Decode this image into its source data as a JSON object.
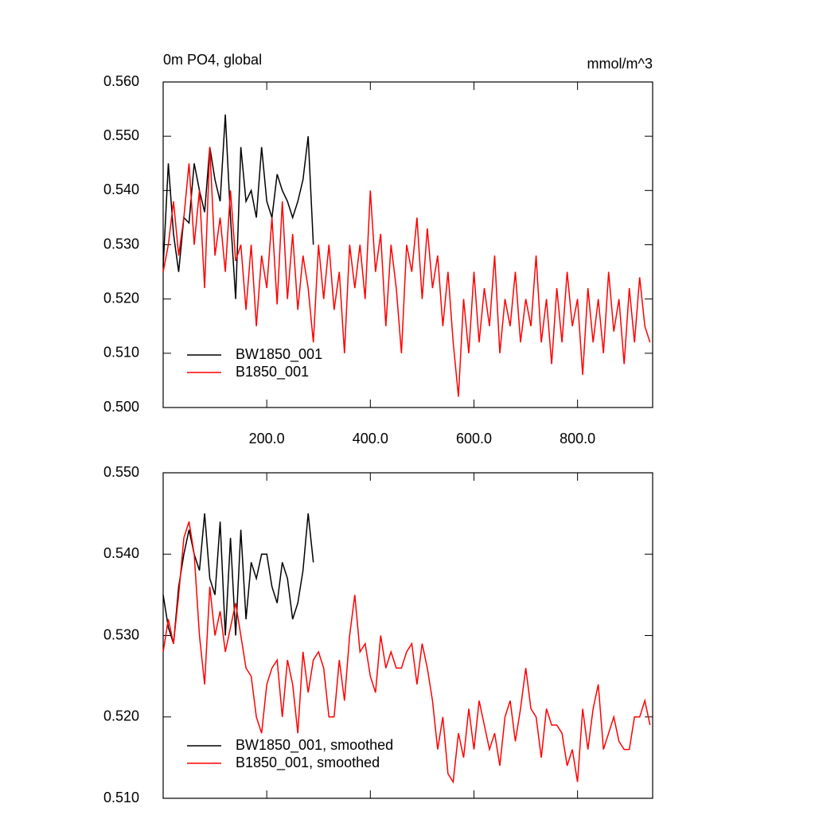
{
  "chart_data": [
    {
      "type": "line",
      "title": "0m PO4, global",
      "units": "mmol/m^3",
      "xlim": [
        0,
        945
      ],
      "ylim": [
        0.5,
        0.56
      ],
      "xticks": [
        {
          "value": 200,
          "label": "200.0"
        },
        {
          "value": 400,
          "label": "400.0"
        },
        {
          "value": 600,
          "label": "600.0"
        },
        {
          "value": 800,
          "label": "800.0"
        }
      ],
      "yticks": [
        {
          "value": 0.5,
          "label": "0.500"
        },
        {
          "value": 0.51,
          "label": "0.510"
        },
        {
          "value": 0.52,
          "label": "0.520"
        },
        {
          "value": 0.53,
          "label": "0.530"
        },
        {
          "value": 0.54,
          "label": "0.540"
        },
        {
          "value": 0.55,
          "label": "0.550"
        },
        {
          "value": 0.56,
          "label": "0.560"
        }
      ],
      "legend": "lower left",
      "series": [
        {
          "name": "BW1850_001",
          "color": "#000000",
          "x": [
            0,
            10,
            20,
            30,
            40,
            50,
            60,
            70,
            80,
            90,
            100,
            110,
            120,
            130,
            140,
            150,
            160,
            170,
            180,
            190,
            200,
            210,
            220,
            230,
            240,
            250,
            260,
            270,
            280,
            290
          ],
          "values": [
            0.526,
            0.545,
            0.532,
            0.525,
            0.535,
            0.534,
            0.545,
            0.54,
            0.536,
            0.548,
            0.542,
            0.538,
            0.554,
            0.535,
            0.52,
            0.548,
            0.538,
            0.54,
            0.535,
            0.548,
            0.538,
            0.535,
            0.543,
            0.54,
            0.538,
            0.535,
            0.538,
            0.542,
            0.55,
            0.53
          ]
        },
        {
          "name": "B1850_001",
          "color": "#ff0000",
          "x": [
            0,
            10,
            20,
            30,
            40,
            50,
            60,
            70,
            80,
            90,
            100,
            110,
            120,
            130,
            140,
            150,
            160,
            170,
            180,
            190,
            200,
            210,
            220,
            230,
            240,
            250,
            260,
            270,
            280,
            290,
            300,
            310,
            320,
            330,
            340,
            350,
            360,
            370,
            380,
            390,
            400,
            410,
            420,
            430,
            440,
            450,
            460,
            470,
            480,
            490,
            500,
            510,
            520,
            530,
            540,
            550,
            560,
            570,
            580,
            590,
            600,
            610,
            620,
            630,
            640,
            650,
            660,
            670,
            680,
            690,
            700,
            710,
            720,
            730,
            740,
            750,
            760,
            770,
            780,
            790,
            800,
            810,
            820,
            830,
            840,
            850,
            860,
            870,
            880,
            890,
            900,
            910,
            920,
            930,
            940
          ],
          "values": [
            0.525,
            0.53,
            0.538,
            0.528,
            0.535,
            0.545,
            0.53,
            0.54,
            0.522,
            0.548,
            0.528,
            0.535,
            0.525,
            0.54,
            0.527,
            0.53,
            0.518,
            0.53,
            0.515,
            0.528,
            0.522,
            0.535,
            0.519,
            0.538,
            0.52,
            0.532,
            0.518,
            0.528,
            0.522,
            0.512,
            0.53,
            0.52,
            0.53,
            0.518,
            0.525,
            0.51,
            0.53,
            0.522,
            0.53,
            0.52,
            0.54,
            0.525,
            0.532,
            0.515,
            0.53,
            0.522,
            0.51,
            0.53,
            0.525,
            0.535,
            0.52,
            0.533,
            0.522,
            0.528,
            0.515,
            0.525,
            0.512,
            0.502,
            0.52,
            0.51,
            0.525,
            0.512,
            0.522,
            0.515,
            0.528,
            0.51,
            0.52,
            0.515,
            0.525,
            0.512,
            0.52,
            0.515,
            0.528,
            0.512,
            0.52,
            0.508,
            0.522,
            0.512,
            0.525,
            0.515,
            0.52,
            0.506,
            0.522,
            0.512,
            0.52,
            0.51,
            0.525,
            0.514,
            0.52,
            0.508,
            0.522,
            0.512,
            0.524,
            0.515,
            0.512
          ]
        }
      ]
    },
    {
      "type": "line",
      "xlim": [
        0,
        945
      ],
      "ylim": [
        0.51,
        0.55
      ],
      "yticks": [
        {
          "value": 0.51,
          "label": "0.510"
        },
        {
          "value": 0.52,
          "label": "0.520"
        },
        {
          "value": 0.53,
          "label": "0.530"
        },
        {
          "value": 0.54,
          "label": "0.540"
        },
        {
          "value": 0.55,
          "label": "0.550"
        }
      ],
      "legend": "lower left",
      "series": [
        {
          "name": "BW1850_001, smoothed",
          "color": "#000000",
          "x": [
            0,
            10,
            20,
            30,
            40,
            50,
            60,
            70,
            80,
            90,
            100,
            110,
            120,
            130,
            140,
            150,
            160,
            170,
            180,
            190,
            200,
            210,
            220,
            230,
            240,
            250,
            260,
            270,
            280,
            290
          ],
          "values": [
            0.535,
            0.531,
            0.529,
            0.536,
            0.54,
            0.543,
            0.54,
            0.538,
            0.545,
            0.537,
            0.535,
            0.544,
            0.53,
            0.542,
            0.53,
            0.543,
            0.532,
            0.539,
            0.537,
            0.54,
            0.54,
            0.536,
            0.534,
            0.539,
            0.537,
            0.532,
            0.534,
            0.538,
            0.545,
            0.539
          ]
        },
        {
          "name": "B1850_001, smoothed",
          "color": "#ff0000",
          "x": [
            0,
            10,
            20,
            30,
            40,
            50,
            60,
            70,
            80,
            90,
            100,
            110,
            120,
            130,
            140,
            150,
            160,
            170,
            180,
            190,
            200,
            210,
            220,
            230,
            240,
            250,
            260,
            270,
            280,
            290,
            300,
            310,
            320,
            330,
            340,
            350,
            360,
            370,
            380,
            390,
            400,
            410,
            420,
            430,
            440,
            450,
            460,
            470,
            480,
            490,
            500,
            510,
            520,
            530,
            540,
            550,
            560,
            570,
            580,
            590,
            600,
            610,
            620,
            630,
            640,
            650,
            660,
            670,
            680,
            690,
            700,
            710,
            720,
            730,
            740,
            750,
            760,
            770,
            780,
            790,
            800,
            810,
            820,
            830,
            840,
            850,
            860,
            870,
            880,
            890,
            900,
            910,
            920,
            930,
            940
          ],
          "values": [
            0.528,
            0.532,
            0.529,
            0.535,
            0.542,
            0.544,
            0.54,
            0.53,
            0.524,
            0.536,
            0.53,
            0.533,
            0.528,
            0.531,
            0.534,
            0.53,
            0.526,
            0.525,
            0.52,
            0.518,
            0.524,
            0.526,
            0.527,
            0.52,
            0.527,
            0.524,
            0.518,
            0.528,
            0.523,
            0.527,
            0.528,
            0.526,
            0.52,
            0.52,
            0.527,
            0.522,
            0.53,
            0.535,
            0.528,
            0.529,
            0.525,
            0.523,
            0.53,
            0.526,
            0.528,
            0.526,
            0.526,
            0.528,
            0.529,
            0.524,
            0.529,
            0.526,
            0.522,
            0.516,
            0.52,
            0.513,
            0.512,
            0.518,
            0.515,
            0.521,
            0.516,
            0.522,
            0.519,
            0.516,
            0.518,
            0.514,
            0.52,
            0.522,
            0.517,
            0.521,
            0.526,
            0.521,
            0.52,
            0.515,
            0.521,
            0.519,
            0.519,
            0.518,
            0.514,
            0.516,
            0.512,
            0.521,
            0.516,
            0.521,
            0.524,
            0.516,
            0.518,
            0.52,
            0.517,
            0.516,
            0.516,
            0.52,
            0.52,
            0.522,
            0.519
          ]
        }
      ]
    }
  ]
}
